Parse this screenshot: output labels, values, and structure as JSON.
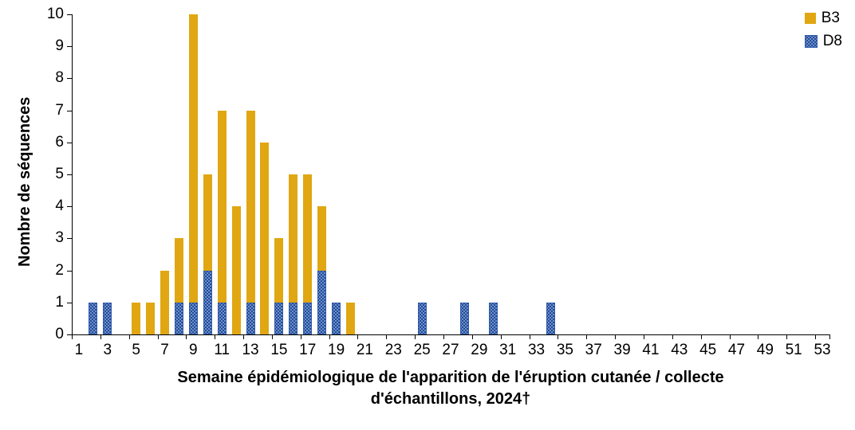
{
  "chart_data": {
    "type": "bar",
    "stacked": true,
    "title": "",
    "ylabel": "Nombre de séquences",
    "xlabel_line1": "Semaine épidémiologique de l'apparition de l'éruption cutanée / collecte",
    "xlabel_line2": "d'échantillons, 2024†",
    "ylim": [
      0,
      10
    ],
    "y_tick_labels": [
      "0",
      "1",
      "2",
      "3",
      "4",
      "5",
      "6",
      "7",
      "8",
      "9",
      "10"
    ],
    "x_domain": [
      1,
      53
    ],
    "x_tick_labels": [
      "1",
      "3",
      "5",
      "7",
      "9",
      "11",
      "13",
      "15",
      "17",
      "19",
      "21",
      "23",
      "25",
      "27",
      "29",
      "31",
      "33",
      "35",
      "37",
      "39",
      "41",
      "43",
      "45",
      "47",
      "49",
      "51",
      "53"
    ],
    "grid": "off",
    "legend_position": "top-right",
    "series": [
      {
        "name": "D8",
        "color": "#4472C4",
        "fill": "dotted",
        "points": [
          {
            "week": 2,
            "value": 1
          },
          {
            "week": 3,
            "value": 1
          },
          {
            "week": 8,
            "value": 1
          },
          {
            "week": 9,
            "value": 1
          },
          {
            "week": 10,
            "value": 2
          },
          {
            "week": 11,
            "value": 1
          },
          {
            "week": 13,
            "value": 1
          },
          {
            "week": 15,
            "value": 1
          },
          {
            "week": 16,
            "value": 1
          },
          {
            "week": 17,
            "value": 1
          },
          {
            "week": 18,
            "value": 2
          },
          {
            "week": 19,
            "value": 1
          },
          {
            "week": 25,
            "value": 1
          },
          {
            "week": 28,
            "value": 1
          },
          {
            "week": 30,
            "value": 1
          },
          {
            "week": 34,
            "value": 1
          }
        ]
      },
      {
        "name": "B3",
        "color": "#E0A712",
        "fill": "solid",
        "points": [
          {
            "week": 5,
            "value": 1
          },
          {
            "week": 6,
            "value": 1
          },
          {
            "week": 7,
            "value": 2
          },
          {
            "week": 8,
            "value": 2
          },
          {
            "week": 9,
            "value": 9
          },
          {
            "week": 10,
            "value": 3
          },
          {
            "week": 11,
            "value": 6
          },
          {
            "week": 12,
            "value": 4
          },
          {
            "week": 13,
            "value": 6
          },
          {
            "week": 14,
            "value": 6
          },
          {
            "week": 15,
            "value": 2
          },
          {
            "week": 16,
            "value": 4
          },
          {
            "week": 17,
            "value": 4
          },
          {
            "week": 18,
            "value": 2
          },
          {
            "week": 20,
            "value": 1
          }
        ]
      }
    ],
    "legend": [
      {
        "label": "B3"
      },
      {
        "label": "D8"
      }
    ]
  }
}
